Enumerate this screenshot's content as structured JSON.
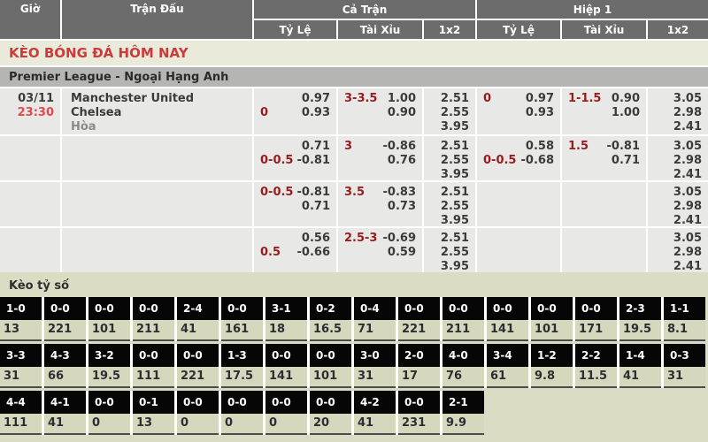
{
  "header": {
    "col_time": "Giờ",
    "col_match": "Trận Đấu",
    "col_fulltime": "Cả Trận",
    "col_half1": "Hiệp 1",
    "sub_handicap": "Tỷ Lệ",
    "sub_overunder": "Tài Xỉu",
    "sub_1x2": "1x2"
  },
  "page_title": "KÈO BÓNG ĐÁ HÔM NAY",
  "league_title": "Premier League - Ngoại Hạng Anh",
  "score_section_title": "Kèo tỷ số",
  "match": {
    "date": "03/11",
    "time": "23:30",
    "home": "Manchester United",
    "away": "Chelsea",
    "draw_label": "Hòa"
  },
  "colors": {
    "accent_red": "#cc3b3b",
    "handicap_red": "#991c1c",
    "time_red": "#e14a4a",
    "header_gray": "#6c6c6c",
    "league_gray": "#b5b5b4",
    "row_gray": "#e8e8e7",
    "sage": "#dadcc4",
    "score_black": "#060606"
  },
  "odds_rows": [
    {
      "ft_hdp": [
        {
          "h": "",
          "v": "0.97"
        },
        {
          "h": "0",
          "v": "0.93"
        }
      ],
      "ft_ou": [
        {
          "h": "3-3.5",
          "v": "1.00"
        },
        {
          "h": "",
          "v": "0.90"
        }
      ],
      "ft_1x2": [
        "2.51",
        "2.55",
        "3.95"
      ],
      "h1_hdp": [
        {
          "h": "0",
          "v": "0.97"
        },
        {
          "h": "",
          "v": "0.93"
        }
      ],
      "h1_ou": [
        {
          "h": "1-1.5",
          "v": "0.90"
        },
        {
          "h": "",
          "v": "1.00"
        }
      ],
      "h1_1x2": [
        "3.05",
        "2.98",
        "2.41"
      ]
    },
    {
      "ft_hdp": [
        {
          "h": "",
          "v": "0.71"
        },
        {
          "h": "0-0.5",
          "v": "-0.81"
        }
      ],
      "ft_ou": [
        {
          "h": "3",
          "v": "-0.86"
        },
        {
          "h": "",
          "v": "0.76"
        }
      ],
      "ft_1x2": [
        "2.51",
        "2.55",
        "3.95"
      ],
      "h1_hdp": [
        {
          "h": "",
          "v": "0.58"
        },
        {
          "h": "0-0.5",
          "v": "-0.68"
        }
      ],
      "h1_ou": [
        {
          "h": "1.5",
          "v": "-0.81"
        },
        {
          "h": "",
          "v": "0.71"
        }
      ],
      "h1_1x2": [
        "3.05",
        "2.98",
        "2.41"
      ]
    },
    {
      "ft_hdp": [
        {
          "h": "0-0.5",
          "v": "-0.81"
        },
        {
          "h": "",
          "v": "0.71"
        }
      ],
      "ft_ou": [
        {
          "h": "3.5",
          "v": "-0.83"
        },
        {
          "h": "",
          "v": "0.73"
        }
      ],
      "ft_1x2": [
        "2.51",
        "2.55",
        "3.95"
      ],
      "h1_hdp": [],
      "h1_ou": [],
      "h1_1x2": [
        "3.05",
        "2.98",
        "2.41"
      ]
    },
    {
      "ft_hdp": [
        {
          "h": "",
          "v": "0.56"
        },
        {
          "h": "0.5",
          "v": "-0.66"
        }
      ],
      "ft_ou": [
        {
          "h": "2.5-3",
          "v": "-0.69"
        },
        {
          "h": "",
          "v": "0.59"
        }
      ],
      "ft_1x2": [
        "2.51",
        "2.55",
        "3.95"
      ],
      "h1_hdp": [],
      "h1_ou": [],
      "h1_1x2": [
        "3.05",
        "2.98",
        "2.41"
      ]
    }
  ],
  "score_grid": {
    "rows": [
      [
        {
          "score": "1-0",
          "odds": "13"
        },
        {
          "score": "0-0",
          "odds": "221"
        },
        {
          "score": "0-0",
          "odds": "101"
        },
        {
          "score": "0-0",
          "odds": "211"
        },
        {
          "score": "2-4",
          "odds": "41"
        },
        {
          "score": "0-0",
          "odds": "161"
        },
        {
          "score": "3-1",
          "odds": "18"
        },
        {
          "score": "0-2",
          "odds": "16.5"
        },
        {
          "score": "0-4",
          "odds": "71"
        },
        {
          "score": "0-0",
          "odds": "221"
        },
        {
          "score": "0-0",
          "odds": "211"
        },
        {
          "score": "0-0",
          "odds": "141"
        },
        {
          "score": "0-0",
          "odds": "101"
        },
        {
          "score": "0-0",
          "odds": "171"
        },
        {
          "score": "2-3",
          "odds": "19.5"
        },
        {
          "score": "1-1",
          "odds": "8.1"
        }
      ],
      [
        {
          "score": "3-3",
          "odds": "31"
        },
        {
          "score": "4-3",
          "odds": "66"
        },
        {
          "score": "3-2",
          "odds": "19.5"
        },
        {
          "score": "0-0",
          "odds": "111"
        },
        {
          "score": "0-0",
          "odds": "221"
        },
        {
          "score": "1-3",
          "odds": "17.5"
        },
        {
          "score": "0-0",
          "odds": "141"
        },
        {
          "score": "0-0",
          "odds": "101"
        },
        {
          "score": "3-0",
          "odds": "31"
        },
        {
          "score": "2-0",
          "odds": "17"
        },
        {
          "score": "4-0",
          "odds": "76"
        },
        {
          "score": "3-4",
          "odds": "61"
        },
        {
          "score": "1-2",
          "odds": "9.8"
        },
        {
          "score": "2-2",
          "odds": "11.5"
        },
        {
          "score": "1-4",
          "odds": "41"
        },
        {
          "score": "0-3",
          "odds": "31"
        }
      ],
      [
        {
          "score": "4-4",
          "odds": "111"
        },
        {
          "score": "4-1",
          "odds": "41"
        },
        {
          "score": "0-0",
          "odds": "0"
        },
        {
          "score": "0-1",
          "odds": "13"
        },
        {
          "score": "0-0",
          "odds": "0"
        },
        {
          "score": "0-0",
          "odds": "0"
        },
        {
          "score": "0-0",
          "odds": "0"
        },
        {
          "score": "0-0",
          "odds": "20"
        },
        {
          "score": "4-2",
          "odds": "41"
        },
        {
          "score": "0-0",
          "odds": "231"
        },
        {
          "score": "2-1",
          "odds": "9.9"
        }
      ]
    ]
  }
}
